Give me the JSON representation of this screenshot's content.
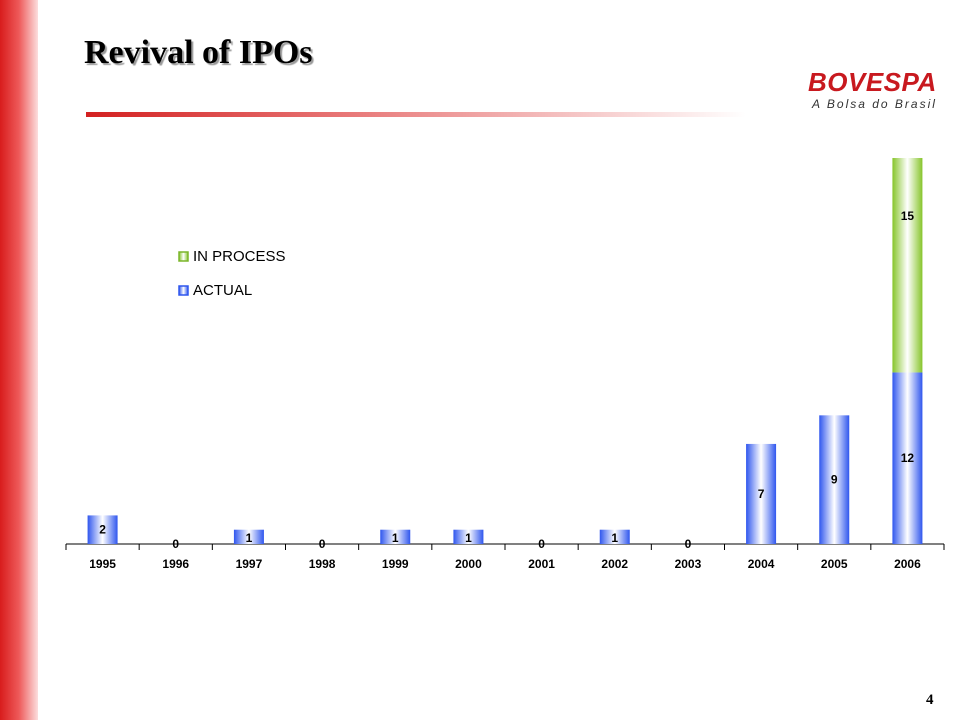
{
  "slide": {
    "title": "Revival of IPOs",
    "page_number": "4",
    "logo": {
      "name": "BOVESPA",
      "tagline": "A Bolsa do Brasil"
    }
  },
  "colors": {
    "actual": "#3a63f0",
    "in_process": "#8fcc2c",
    "accent": "#d81c1c"
  },
  "chart_data": {
    "type": "bar",
    "stacked": true,
    "categories": [
      "1995",
      "1996",
      "1997",
      "1998",
      "1999",
      "2000",
      "2001",
      "2002",
      "2003",
      "2004",
      "2005",
      "2006"
    ],
    "series": [
      {
        "name": "ACTUAL",
        "values": [
          2,
          0,
          1,
          0,
          1,
          1,
          0,
          1,
          0,
          7,
          9,
          12
        ]
      },
      {
        "name": "IN PROCESS",
        "values": [
          0,
          0,
          0,
          0,
          0,
          0,
          0,
          0,
          0,
          0,
          0,
          15
        ]
      }
    ],
    "legend": {
      "entries": [
        "IN PROCESS",
        "ACTUAL"
      ],
      "placement": "left"
    },
    "ylim": [
      0,
      27.7
    ],
    "grid": false
  }
}
